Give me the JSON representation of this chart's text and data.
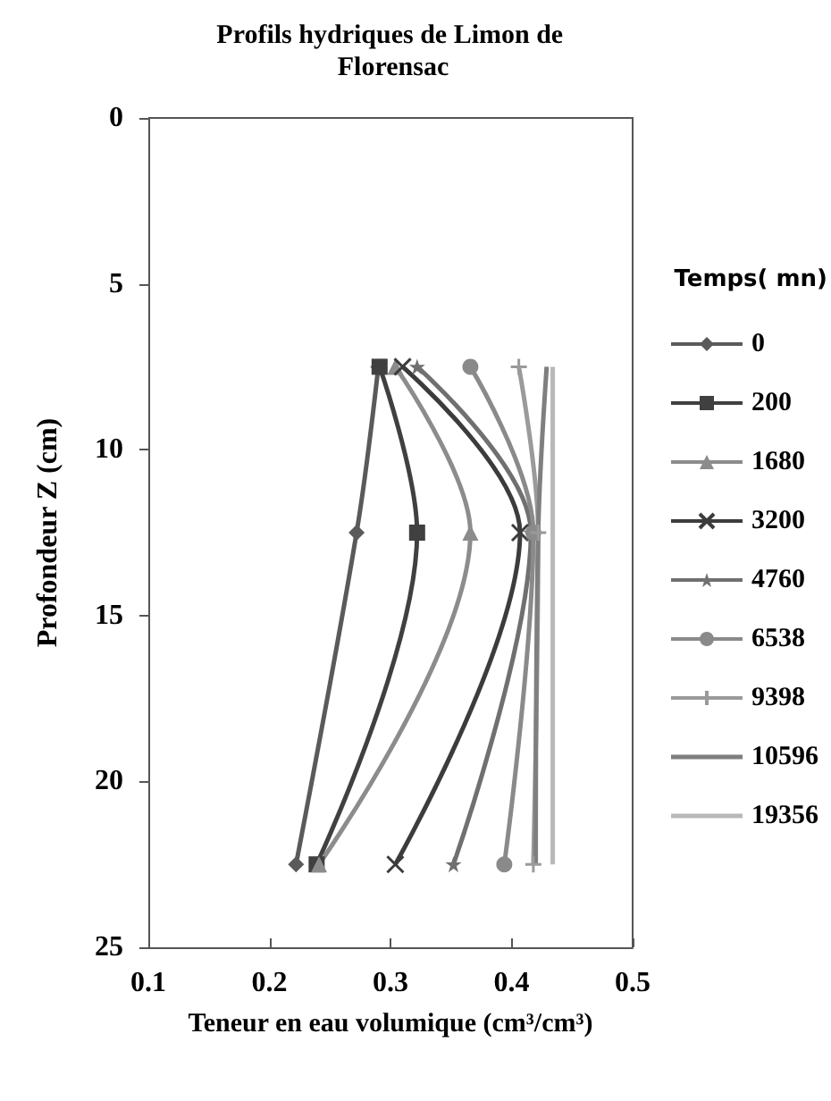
{
  "chart_data": {
    "type": "line",
    "title": "Profils hydriques de Limon de Florensac",
    "xlabel": "Teneur en eau volumique (cm³/cm³)",
    "ylabel": "Profondeur Z (cm)",
    "legend_title": "Temps( mn)",
    "xlim": [
      0.1,
      0.5
    ],
    "xticks": [
      0.1,
      0.2,
      0.3,
      0.4,
      0.5
    ],
    "ylim": [
      25,
      0
    ],
    "yticks": [
      0,
      5,
      10,
      15,
      20,
      25
    ],
    "grid": false,
    "legend": "right",
    "line_style": "solid",
    "series": [
      {
        "name": "0",
        "color": "#5a5a5a",
        "marker": "diamond",
        "x": [
          0.29,
          0.272,
          0.222
        ],
        "values": [
          7.5,
          12.5,
          22.5
        ]
      },
      {
        "name": "200",
        "color": "#404040",
        "marker": "square",
        "x": [
          0.291,
          0.322,
          0.239
        ],
        "values": [
          7.5,
          12.5,
          22.5
        ]
      },
      {
        "name": "1680",
        "color": "#8c8c8c",
        "marker": "triangle",
        "x": [
          0.304,
          0.366,
          0.241
        ],
        "values": [
          7.5,
          12.5,
          22.5
        ]
      },
      {
        "name": "3200",
        "color": "#3c3c3c",
        "marker": "cross",
        "x": [
          0.31,
          0.407,
          0.304
        ],
        "values": [
          7.5,
          12.5,
          22.5
        ]
      },
      {
        "name": "4760",
        "color": "#707070",
        "marker": "star",
        "x": [
          0.322,
          0.416,
          0.352
        ],
        "values": [
          7.5,
          12.5,
          22.5
        ]
      },
      {
        "name": "6538",
        "color": "#8a8a8a",
        "marker": "circle",
        "x": [
          0.366,
          0.418,
          0.394
        ],
        "values": [
          7.5,
          12.5,
          22.5
        ]
      },
      {
        "name": "9398",
        "color": "#9a9a9a",
        "marker": "plus",
        "x": [
          0.406,
          0.422,
          0.418
        ],
        "values": [
          7.5,
          12.5,
          22.5
        ]
      },
      {
        "name": "10596",
        "color": "#7f7f7f",
        "marker": "none",
        "x": [
          0.429,
          0.422,
          0.42
        ],
        "values": [
          7.5,
          12.5,
          22.5
        ]
      },
      {
        "name": "19356",
        "color": "#b8b8b8",
        "marker": "none",
        "x": [
          0.434,
          0.434,
          0.434
        ],
        "values": [
          7.5,
          12.5,
          22.5
        ]
      }
    ]
  }
}
